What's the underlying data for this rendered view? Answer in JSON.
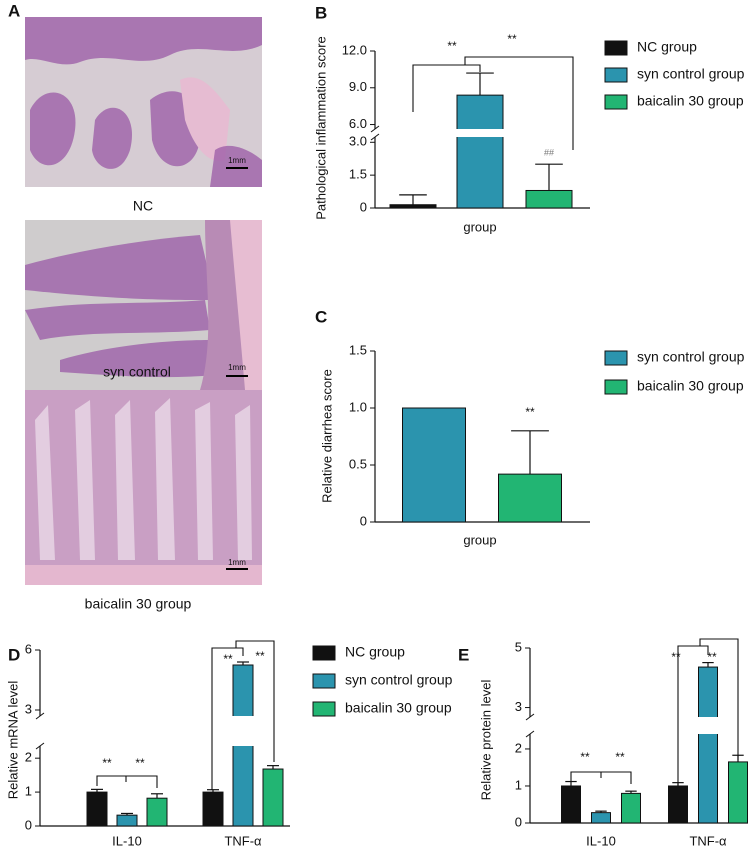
{
  "figure": {
    "label": "A",
    "images": [
      {
        "caption": "NC",
        "scale": "1mm"
      },
      {
        "caption": "syn control",
        "scale": "1mm"
      },
      {
        "caption": "baicalin 30 group",
        "scale": "1mm"
      }
    ]
  },
  "chart_data": [
    {
      "type": "bar",
      "label": "B",
      "ylabel": "Pathological inflammation score",
      "categories": [
        "group"
      ],
      "series": [
        {
          "name": "NC group",
          "color": "#111111",
          "values": [
            0.15
          ],
          "errors": [
            0.45
          ]
        },
        {
          "name": "syn control group",
          "color": "#2b94ae",
          "values": [
            8.4
          ],
          "errors": [
            1.8
          ]
        },
        {
          "name": "baicalin 30 group",
          "color": "#22b573",
          "values": [
            0.8
          ],
          "errors": [
            1.2
          ]
        }
      ],
      "ylim": [
        0,
        12
      ],
      "y_break": [
        3.15,
        5.8
      ],
      "yticks": [
        0,
        1.5,
        {
          "value": 3,
          "label": "3.0"
        },
        {
          "value": 6,
          "label": "6.0"
        },
        {
          "value": 9,
          "label": "9.0"
        },
        {
          "value": 12,
          "label": "12.0"
        }
      ],
      "annotations": [
        "**",
        "**",
        "##"
      ],
      "legend": "right"
    },
    {
      "type": "bar",
      "label": "C",
      "ylabel": "Relative diarrhea score",
      "categories": [
        "group"
      ],
      "series": [
        {
          "name": "syn control group",
          "color": "#2b94ae",
          "values": [
            1.0
          ]
        },
        {
          "name": "baicalin 30 group",
          "color": "#22b573",
          "values": [
            0.42
          ],
          "errors": [
            0.38
          ]
        }
      ],
      "ylim": [
        0,
        1.5
      ],
      "yticks": [
        0,
        0.5,
        {
          "value": 1,
          "label": "1.0"
        },
        1.5
      ],
      "annotations": [
        "**"
      ],
      "legend": "right"
    },
    {
      "type": "bar",
      "label": "D",
      "ylabel": "Relative mRNA level",
      "categories": [
        "IL-10",
        "TNF-α"
      ],
      "series": [
        {
          "name": "NC group",
          "color": "#111111",
          "values": [
            1.0,
            1.0
          ],
          "errors": [
            0.08,
            0.07
          ]
        },
        {
          "name": "syn control group",
          "color": "#2b94ae",
          "values": [
            0.32,
            5.25
          ],
          "errors": [
            0.05,
            0.15
          ]
        },
        {
          "name": "baicalin 30 group",
          "color": "#22b573",
          "values": [
            0.82,
            1.68
          ],
          "errors": [
            0.13,
            0.1
          ]
        }
      ],
      "ylim": [
        0,
        6
      ],
      "y_break": [
        2.3,
        2.8
      ],
      "yticks": [
        0,
        1,
        2,
        3,
        6
      ],
      "annotations": [
        "**",
        "**",
        "**",
        "**"
      ],
      "legend": "right"
    },
    {
      "type": "bar",
      "label": "E",
      "ylabel": "Relative protein level",
      "categories": [
        "IL-10",
        "TNF-α"
      ],
      "series": [
        {
          "name": "NC group",
          "color": "#111111",
          "values": [
            1.0,
            1.0
          ],
          "errors": [
            0.12,
            0.09
          ]
        },
        {
          "name": "syn control group",
          "color": "#2b94ae",
          "values": [
            0.28,
            4.36
          ],
          "errors": [
            0.04,
            0.15
          ]
        },
        {
          "name": "baicalin 30 group",
          "color": "#22b573",
          "values": [
            0.8,
            1.65
          ],
          "errors": [
            0.06,
            0.18
          ]
        }
      ],
      "ylim": [
        0,
        5
      ],
      "y_break": [
        2.35,
        2.75
      ],
      "yticks": [
        0,
        1,
        2,
        3,
        5
      ],
      "annotations": [
        "**",
        "**",
        "**",
        "**"
      ]
    }
  ]
}
